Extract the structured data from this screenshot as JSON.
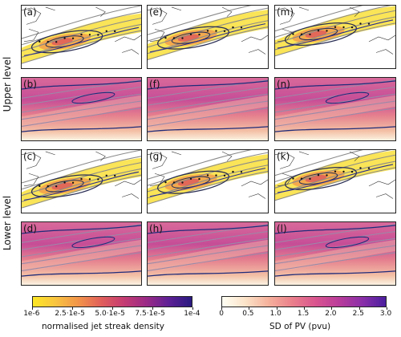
{
  "row_labels": {
    "upper": "Upper level",
    "lower": "Lower level"
  },
  "panels": [
    {
      "id": "a",
      "label": "(a)",
      "kind": "density",
      "row": 0,
      "col": 0
    },
    {
      "id": "e",
      "label": "(e)",
      "kind": "density",
      "row": 0,
      "col": 1
    },
    {
      "id": "m",
      "label": "(m)",
      "kind": "density",
      "row": 0,
      "col": 2
    },
    {
      "id": "b",
      "label": "(b)",
      "kind": "pv",
      "row": 1,
      "col": 0
    },
    {
      "id": "f",
      "label": "(f)",
      "kind": "pv",
      "row": 1,
      "col": 1
    },
    {
      "id": "n",
      "label": "(n)",
      "kind": "pv",
      "row": 1,
      "col": 2
    },
    {
      "id": "c",
      "label": "(c)",
      "kind": "density",
      "row": 2,
      "col": 0
    },
    {
      "id": "g",
      "label": "(g)",
      "kind": "density",
      "row": 2,
      "col": 1
    },
    {
      "id": "k",
      "label": "(k)",
      "kind": "density",
      "row": 2,
      "col": 2
    },
    {
      "id": "d",
      "label": "(d)",
      "kind": "pv",
      "row": 3,
      "col": 0
    },
    {
      "id": "h",
      "label": "(h)",
      "kind": "pv",
      "row": 3,
      "col": 1
    },
    {
      "id": "l",
      "label": "(l)",
      "kind": "pv",
      "row": 3,
      "col": 2
    }
  ],
  "colorbar_density": {
    "title": "normalised jet streak density",
    "ticks": [
      "1e-6",
      "2.5·1e-5",
      "5.0·1e-5",
      "7.5·1e-5",
      "1e-4"
    ],
    "colors": [
      "#fde725",
      "#f9c440",
      "#f2944a",
      "#e1605b",
      "#c53c72",
      "#9b2a86",
      "#5d2095",
      "#2a1a80"
    ]
  },
  "colorbar_pv": {
    "title": "SD of PV (pvu)",
    "ticks": [
      "0",
      "0.5",
      "1.0",
      "1.5",
      "2.0",
      "2.5",
      "3.0"
    ],
    "colors": [
      "#fffff4",
      "#fbe3c8",
      "#f5b09b",
      "#ea7f8c",
      "#d9558f",
      "#b93c9a",
      "#8a2fa8",
      "#4a1e9e"
    ]
  }
}
